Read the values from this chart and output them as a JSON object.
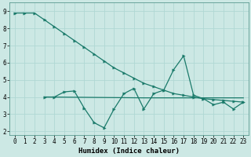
{
  "line1_x": [
    0,
    1,
    2,
    3,
    4,
    5,
    6,
    7,
    8,
    9,
    10,
    11,
    12,
    13,
    14,
    15,
    16,
    17,
    18,
    19,
    20,
    21,
    22,
    23
  ],
  "line1_y": [
    8.9,
    8.9,
    8.9,
    8.5,
    8.1,
    7.7,
    7.3,
    6.9,
    6.5,
    6.1,
    5.7,
    5.4,
    5.1,
    4.8,
    4.6,
    4.4,
    4.2,
    4.1,
    4.0,
    3.9,
    3.85,
    3.8,
    3.75,
    3.7
  ],
  "line2_x": [
    3,
    4,
    5,
    6,
    7,
    8,
    9,
    10,
    11,
    12,
    13,
    14,
    15,
    16,
    17,
    18,
    19,
    20,
    21,
    22,
    23
  ],
  "line2_y": [
    4.0,
    4.0,
    4.3,
    4.35,
    3.35,
    2.5,
    2.2,
    3.3,
    4.2,
    4.5,
    3.3,
    4.2,
    4.4,
    5.6,
    6.4,
    4.1,
    3.9,
    3.55,
    3.7,
    3.3,
    3.7
  ],
  "line3_x": [
    3,
    13,
    18,
    23
  ],
  "line3_y": [
    4.0,
    3.95,
    3.95,
    3.95
  ],
  "line_color": "#1a7a6a",
  "bg_color": "#cce8e4",
  "grid_color": "#b0d8d4",
  "xlabel": "Humidex (Indice chaleur)",
  "xlim": [
    -0.5,
    23.5
  ],
  "ylim": [
    1.8,
    9.5
  ],
  "yticks": [
    2,
    3,
    4,
    5,
    6,
    7,
    8,
    9
  ],
  "xticks": [
    0,
    1,
    2,
    3,
    4,
    5,
    6,
    7,
    8,
    9,
    10,
    11,
    12,
    13,
    14,
    15,
    16,
    17,
    18,
    19,
    20,
    21,
    22,
    23
  ],
  "tick_fontsize": 5.5,
  "xlabel_fontsize": 6.5
}
